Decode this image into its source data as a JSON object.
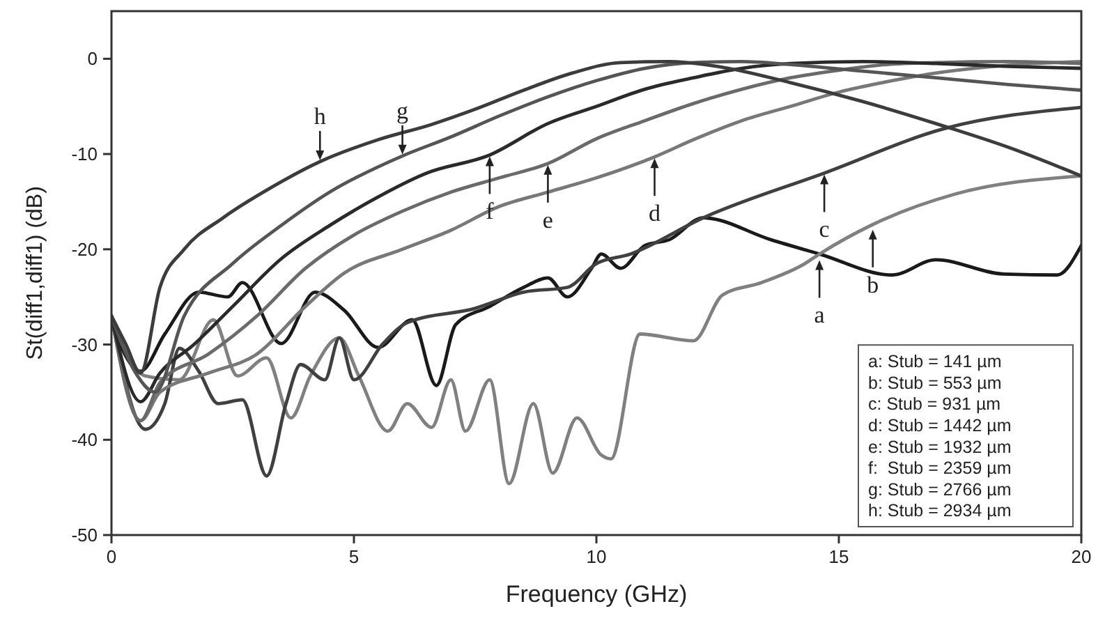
{
  "chart_data": {
    "type": "line",
    "xlabel": "Frequency (GHz)",
    "ylabel": "St(diff1,diff1) (dB)",
    "xlim": [
      0,
      20
    ],
    "ylim": [
      -50,
      5
    ],
    "xticks": [
      0,
      5,
      10,
      15,
      20
    ],
    "yticks": [
      -50,
      -40,
      -30,
      -20,
      -10,
      0
    ],
    "grid": false,
    "line_style": "solid",
    "series": [
      {
        "color": "#1a1a1a",
        "x": [
          0,
          0.6,
          1.1,
          1.8,
          2.4,
          2.7,
          3.5,
          4.2,
          4.8,
          5.5,
          6.2,
          6.7,
          7.1,
          7.8,
          8.5,
          9,
          9.4,
          9.9,
          10.1,
          10.5,
          11,
          11.5,
          12.2,
          13.6,
          14.6,
          16.1,
          17,
          18.4,
          19.5,
          20
        ],
        "values": [
          -27.9,
          -32.8,
          -28.9,
          -24.5,
          -25,
          -23.5,
          -29.9,
          -24.5,
          -26.4,
          -30.3,
          -27.4,
          -34.3,
          -27.9,
          -26,
          -24,
          -23,
          -25,
          -22,
          -20.5,
          -22,
          -19.6,
          -19,
          -16.7,
          -19,
          -20.5,
          -22.7,
          -21.1,
          -22.6,
          -22.7,
          -19.6
        ]
      },
      {
        "color": "#808080",
        "x": [
          0,
          0.7,
          1.4,
          2.1,
          2.6,
          3.2,
          3.7,
          4.1,
          4.7,
          5.1,
          5.7,
          6.1,
          6.6,
          7,
          7.3,
          7.8,
          8.2,
          8.7,
          9.1,
          9.6,
          10.1,
          10.3,
          10.9,
          12,
          12.6,
          13.4,
          14.3,
          14.6,
          15.7,
          17.4,
          20
        ],
        "values": [
          -27.4,
          -33.3,
          -33.7,
          -27.4,
          -33.3,
          -31.4,
          -37.7,
          -33.3,
          -29.3,
          -33.3,
          -39.1,
          -36.2,
          -38.7,
          -33.7,
          -39.1,
          -33.7,
          -44.6,
          -36.2,
          -43.5,
          -37.7,
          -41.6,
          -42,
          -28.9,
          -29.6,
          -24.8,
          -23.5,
          -21.5,
          -20.5,
          -17.4,
          -14.2,
          -12.3
        ]
      },
      {
        "color": "#404040",
        "x": [
          0,
          0.7,
          1.1,
          1.4,
          1.8,
          2.2,
          2.7,
          3.2,
          3.6,
          3.9,
          4.4,
          4.7,
          5,
          5.6,
          6.1,
          7.5,
          8.5,
          9.4,
          10,
          10.7,
          12.2,
          14.7,
          17.2,
          20
        ],
        "values": [
          -27,
          -38.9,
          -36.2,
          -30.4,
          -32.8,
          -36.2,
          -35.8,
          -43.8,
          -36.2,
          -32.1,
          -33.7,
          -29.3,
          -33.7,
          -29.9,
          -27.7,
          -26.2,
          -24.5,
          -24,
          -21.5,
          -20.5,
          -16.7,
          -12,
          -7.3,
          -5.1
        ]
      },
      {
        "color": "#787878",
        "x": [
          0,
          0.6,
          1,
          2,
          3,
          4,
          4.8,
          6,
          7,
          8,
          9,
          10,
          11.2,
          12,
          13,
          14,
          15,
          16,
          17,
          18,
          19,
          20
        ],
        "values": [
          -27,
          -38,
          -35,
          -33,
          -31,
          -26,
          -22.5,
          -20,
          -18,
          -15.5,
          -14,
          -12.5,
          -10.3,
          -8.5,
          -6.5,
          -5,
          -3.5,
          -2.4,
          -1.5,
          -0.9,
          -0.5,
          -0.3
        ]
      },
      {
        "color": "#6a6a6a",
        "x": [
          0,
          0.6,
          1,
          2,
          3,
          4,
          5,
          6,
          7,
          8,
          9,
          10,
          11,
          12,
          13,
          14,
          15,
          16,
          17,
          18.5,
          20
        ],
        "values": [
          -27,
          -38,
          -34,
          -31,
          -27,
          -22,
          -18.5,
          -16,
          -14,
          -12.5,
          -11,
          -8.4,
          -6.5,
          -4.7,
          -3.2,
          -2,
          -1.2,
          -0.6,
          -0.4,
          -0.3,
          -0.5
        ]
      },
      {
        "color": "#2a2a2a",
        "x": [
          0,
          0.6,
          1,
          1.7,
          2.5,
          3.5,
          4.5,
          5.5,
          6.5,
          7.8,
          9,
          10,
          11,
          12,
          13,
          14,
          15.5,
          17,
          18.5,
          20
        ],
        "values": [
          -27,
          -36,
          -33,
          -30,
          -26,
          -21,
          -17.5,
          -14.5,
          -12,
          -10.1,
          -6.8,
          -5,
          -3.2,
          -2,
          -1,
          -0.5,
          -0.3,
          -0.5,
          -0.8,
          -1
        ]
      },
      {
        "color": "#555555",
        "x": [
          0,
          0.5,
          0.9,
          1.5,
          2.5,
          3.5,
          4.5,
          6,
          7,
          8,
          9,
          10,
          11,
          12,
          13,
          14,
          15.5,
          17,
          18.5,
          20
        ],
        "values": [
          -27,
          -33,
          -35,
          -27,
          -21.5,
          -17.5,
          -14,
          -10.2,
          -8.2,
          -6,
          -4,
          -2.3,
          -1,
          -0.4,
          -0.3,
          -0.6,
          -1.3,
          -2,
          -2.7,
          -3.3
        ]
      },
      {
        "color": "#3c3c3c",
        "x": [
          0,
          0.3,
          0.6,
          1,
          1.5,
          2.3,
          3.3,
          4.3,
          5.5,
          6.6,
          7.5,
          8.5,
          9.5,
          10.5,
          11.5,
          12.5,
          14,
          15.5,
          17,
          18.5,
          20
        ],
        "values": [
          -27,
          -30,
          -33,
          -24,
          -20,
          -16.7,
          -13.5,
          -10.8,
          -8.5,
          -6.9,
          -5.3,
          -3.3,
          -1.5,
          -0.4,
          -0.3,
          -0.8,
          -2.5,
          -4.5,
          -6.8,
          -9.3,
          -12.3
        ]
      }
    ],
    "annotations": [
      {
        "text": "a",
        "x": 14.6,
        "y": -21
      },
      {
        "text": "b",
        "x": 15.7,
        "y": -17.8
      },
      {
        "text": "c",
        "x": 14.7,
        "y": -12
      },
      {
        "text": "d",
        "x": 11.2,
        "y": -10.3
      },
      {
        "text": "e",
        "x": 9,
        "y": -11
      },
      {
        "text": "f",
        "x": 7.8,
        "y": -10.1
      },
      {
        "text": "g",
        "x": 6,
        "y": -10.2
      },
      {
        "text": "h",
        "x": 4.3,
        "y": -10.8
      },
      "a: Stub = 141 µm",
      "b: Stub = 553 µm",
      "c: Stub = 931 µm",
      "d: Stub = 1442 µm",
      "e: Stub = 1932 µm",
      "f:  Stub = 2359 µm",
      "g: Stub = 2766 µm",
      "h: Stub = 2934 µm"
    ]
  }
}
